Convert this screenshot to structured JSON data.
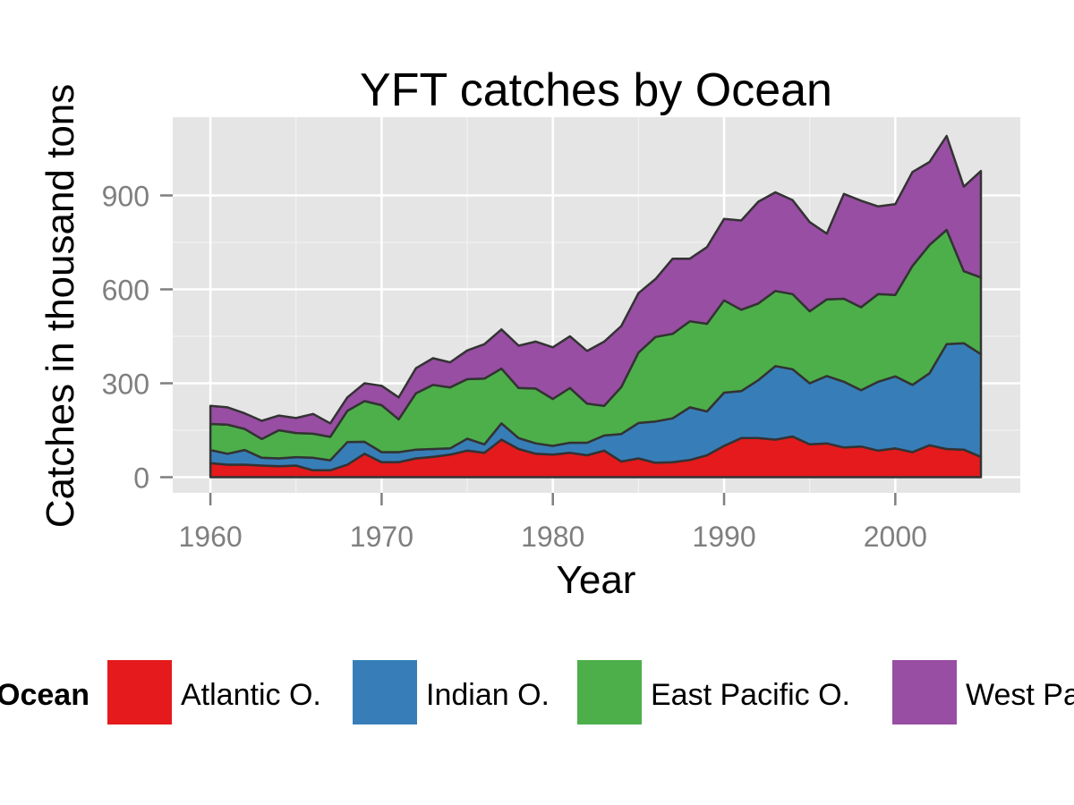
{
  "chart_data": {
    "type": "area",
    "stacked": true,
    "title": "YFT catches by Ocean",
    "xlabel": "Year",
    "ylabel": "Catches in thousand tons",
    "xlim": [
      1957.8,
      2007.3
    ],
    "ylim": [
      -50,
      1150
    ],
    "x_ticks": [
      1960,
      1970,
      1980,
      1990,
      2000
    ],
    "y_ticks": [
      0,
      300,
      600,
      900
    ],
    "grid": true,
    "legend": {
      "title": "Ocean",
      "position": "bottom"
    },
    "x": [
      1960,
      1961,
      1962,
      1963,
      1964,
      1965,
      1966,
      1967,
      1968,
      1969,
      1970,
      1971,
      1972,
      1973,
      1974,
      1975,
      1976,
      1977,
      1978,
      1979,
      1980,
      1981,
      1982,
      1983,
      1984,
      1985,
      1986,
      1987,
      1988,
      1989,
      1990,
      1991,
      1992,
      1993,
      1994,
      1995,
      1996,
      1997,
      1998,
      1999,
      2000,
      2001,
      2002,
      2003,
      2004,
      2005
    ],
    "series": [
      {
        "name": "Atlantic O.",
        "color": "#e41a1c",
        "values": [
          45,
          40,
          40,
          37,
          35,
          37,
          22,
          22,
          40,
          75,
          48,
          48,
          60,
          65,
          72,
          85,
          78,
          120,
          90,
          75,
          72,
          78,
          70,
          85,
          50,
          60,
          46,
          48,
          55,
          70,
          100,
          125,
          125,
          120,
          130,
          105,
          108,
          95,
          98,
          85,
          92,
          80,
          102,
          90,
          88,
          65
        ]
      },
      {
        "name": "Indian O.",
        "color": "#377eb8",
        "values": [
          42,
          35,
          47,
          25,
          25,
          27,
          40,
          32,
          72,
          38,
          32,
          32,
          28,
          25,
          20,
          38,
          27,
          52,
          35,
          33,
          28,
          32,
          40,
          48,
          88,
          113,
          132,
          140,
          168,
          140,
          170,
          150,
          185,
          235,
          215,
          195,
          215,
          210,
          180,
          220,
          230,
          215,
          230,
          335,
          340,
          328
        ]
      },
      {
        "name": "East Pacific O.",
        "color": "#4daf4a",
        "values": [
          83,
          93,
          67,
          60,
          90,
          77,
          77,
          75,
          100,
          130,
          150,
          105,
          180,
          205,
          195,
          190,
          210,
          175,
          160,
          175,
          150,
          175,
          125,
          95,
          150,
          225,
          270,
          270,
          275,
          280,
          295,
          260,
          245,
          240,
          240,
          230,
          245,
          265,
          265,
          280,
          260,
          380,
          410,
          365,
          230,
          245
        ]
      },
      {
        "name": "West Pacific O.",
        "color": "#984ea3",
        "values": [
          58,
          55,
          50,
          58,
          47,
          48,
          63,
          43,
          43,
          57,
          62,
          70,
          80,
          85,
          80,
          92,
          110,
          125,
          135,
          150,
          165,
          165,
          168,
          205,
          195,
          190,
          185,
          240,
          200,
          245,
          260,
          285,
          325,
          315,
          300,
          285,
          210,
          335,
          340,
          280,
          290,
          300,
          265,
          300,
          270,
          340
        ]
      }
    ]
  }
}
